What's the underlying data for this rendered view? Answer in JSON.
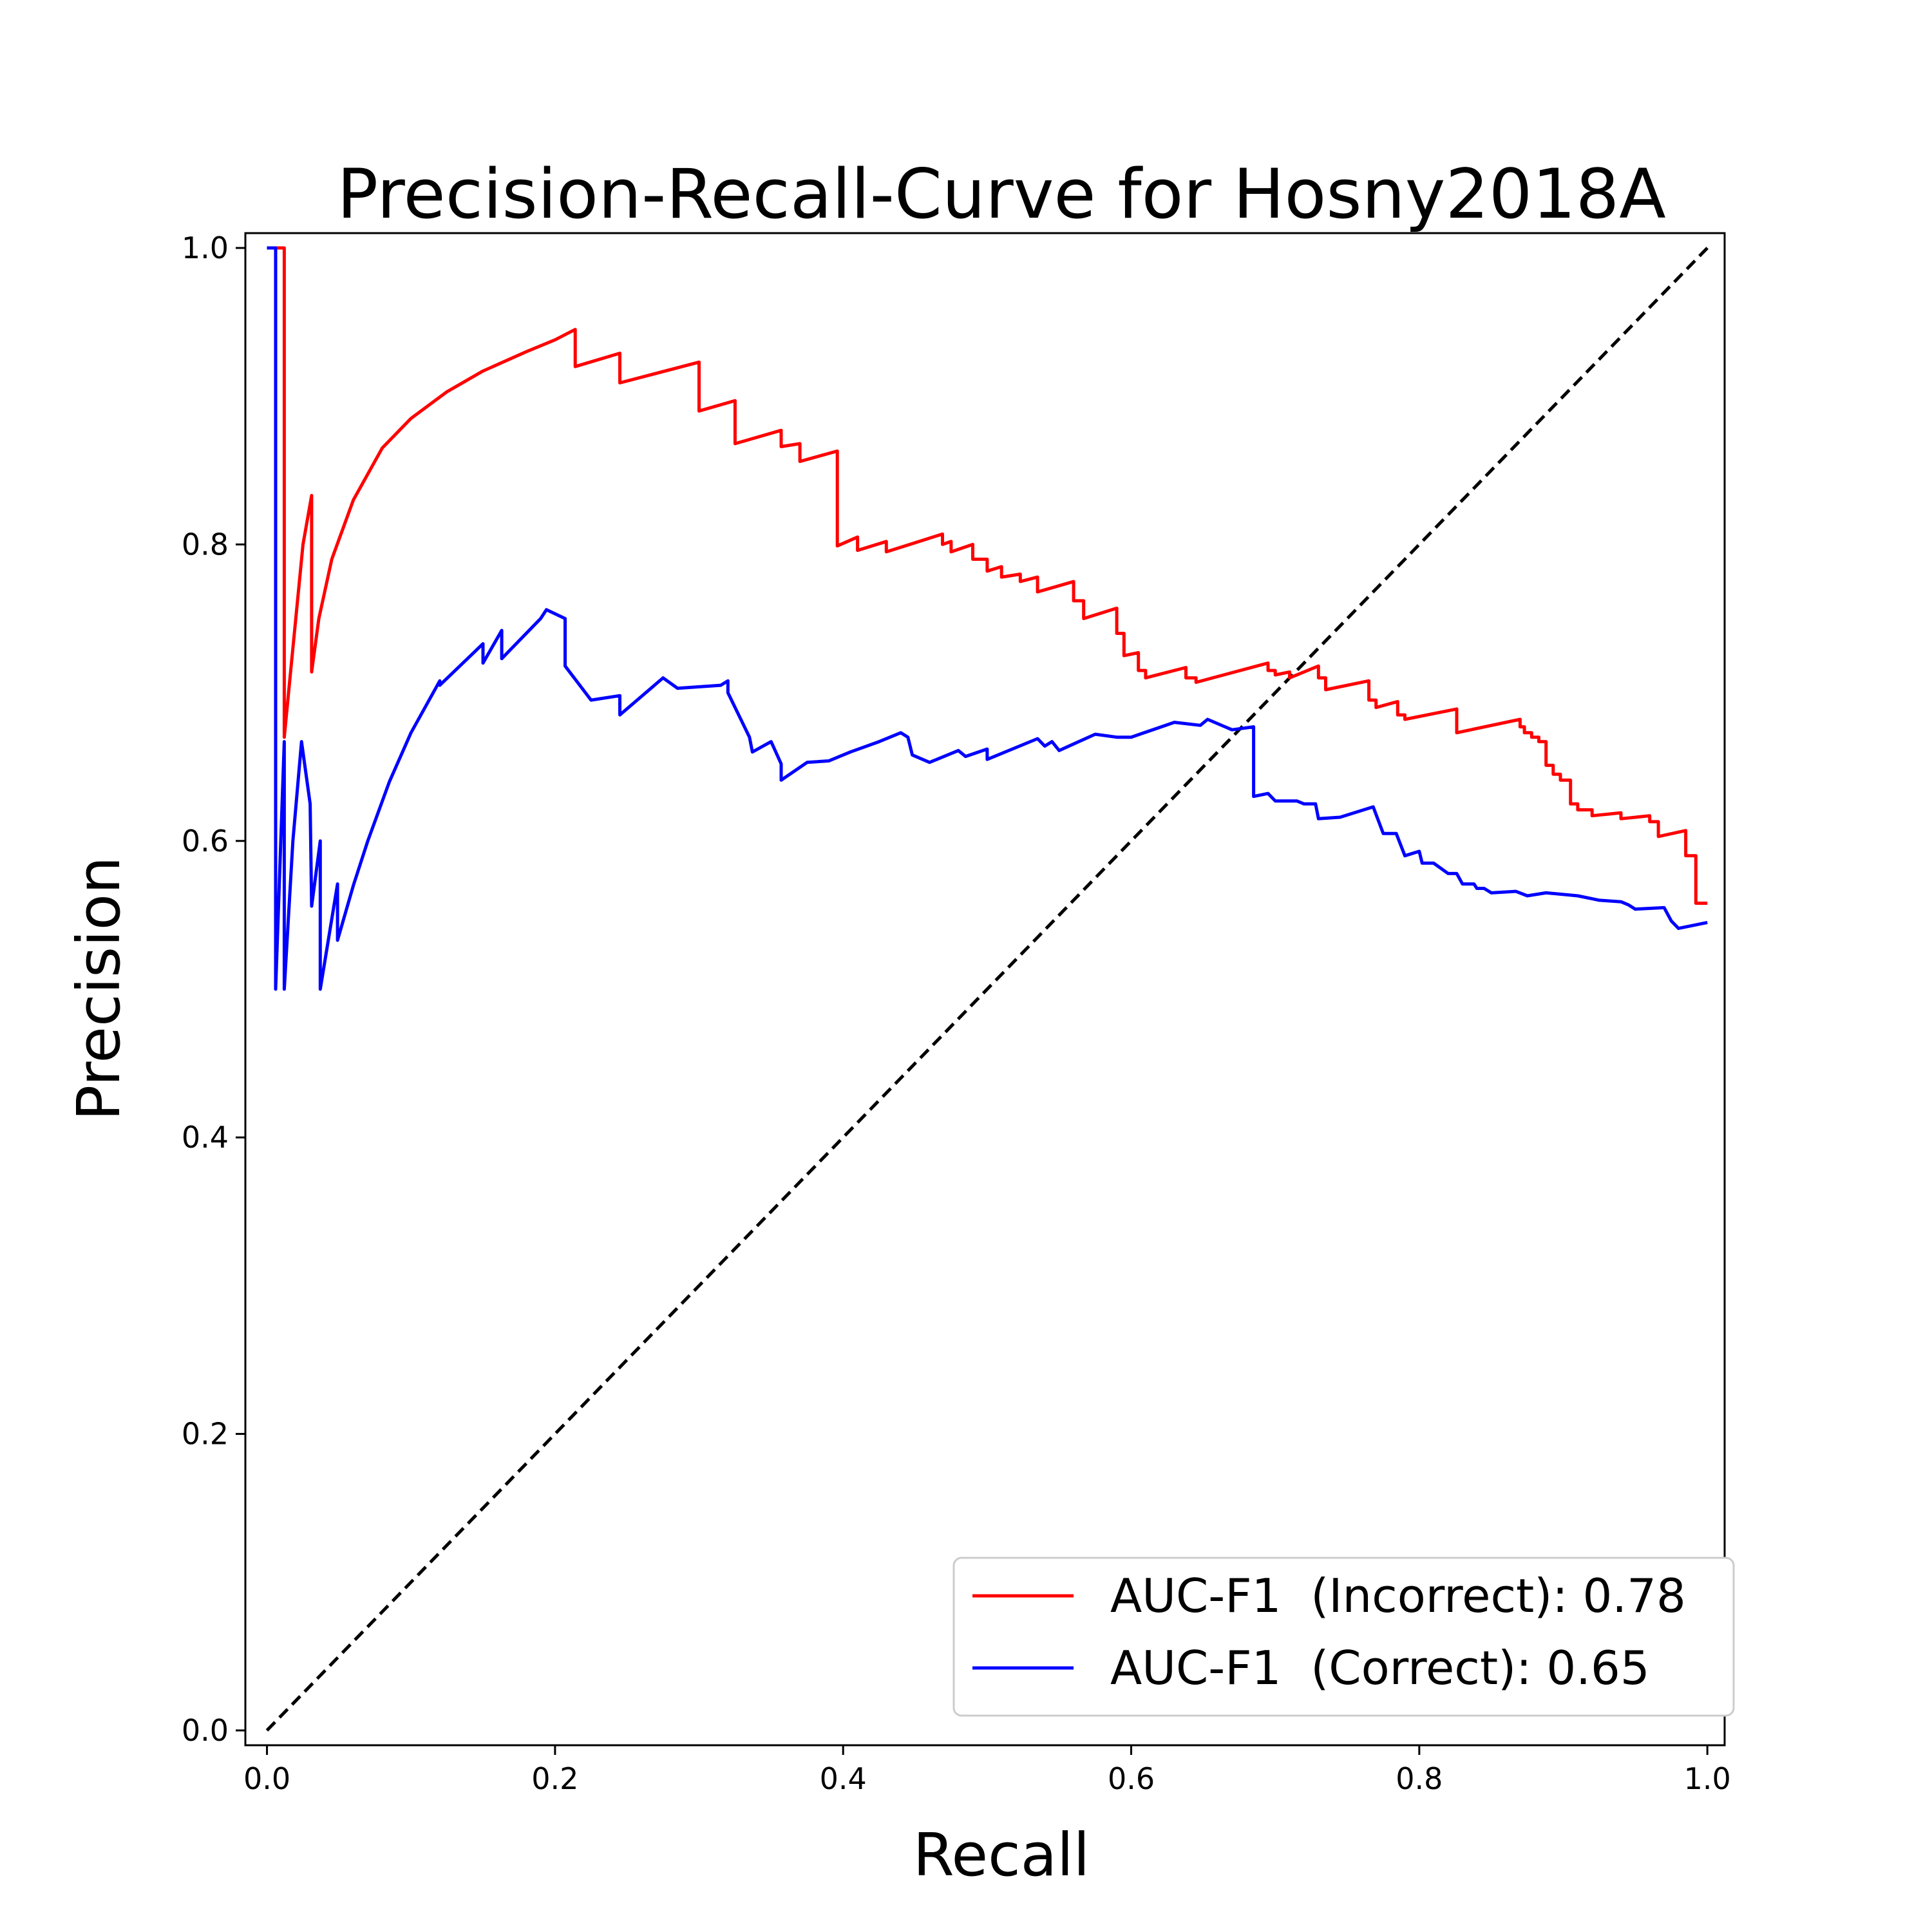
{
  "chart_data": {
    "type": "line",
    "title": "Precision-Recall-Curve for Hosny2018A",
    "xlabel": "Recall",
    "ylabel": "Precision",
    "xlim": [
      -0.015,
      1.012
    ],
    "ylim": [
      -0.01,
      1.01
    ],
    "x_ticks": [
      "0.0",
      "0.2",
      "0.4",
      "0.6",
      "0.8",
      "1.0"
    ],
    "y_ticks": [
      "0.0",
      "0.2",
      "0.4",
      "0.6",
      "0.8",
      "1.0"
    ],
    "grid": false,
    "legend_position": "lower right",
    "series": [
      {
        "name": "AUC-F1  (Incorrect): 0.78",
        "color": "#ff0000",
        "points": [
          [
            0.0,
            1.0
          ],
          [
            0.012,
            1.0
          ],
          [
            0.012,
            0.67
          ],
          [
            0.016,
            0.71
          ],
          [
            0.02,
            0.75
          ],
          [
            0.025,
            0.8
          ],
          [
            0.031,
            0.833
          ],
          [
            0.031,
            0.714
          ],
          [
            0.036,
            0.75
          ],
          [
            0.045,
            0.79
          ],
          [
            0.06,
            0.83
          ],
          [
            0.08,
            0.865
          ],
          [
            0.1,
            0.885
          ],
          [
            0.125,
            0.903
          ],
          [
            0.15,
            0.917
          ],
          [
            0.18,
            0.93
          ],
          [
            0.2,
            0.938
          ],
          [
            0.214,
            0.945
          ],
          [
            0.214,
            0.92
          ],
          [
            0.245,
            0.929
          ],
          [
            0.245,
            0.909
          ],
          [
            0.3,
            0.923
          ],
          [
            0.3,
            0.89
          ],
          [
            0.325,
            0.897
          ],
          [
            0.325,
            0.868
          ],
          [
            0.357,
            0.877
          ],
          [
            0.357,
            0.866
          ],
          [
            0.37,
            0.868
          ],
          [
            0.37,
            0.856
          ],
          [
            0.396,
            0.863
          ],
          [
            0.396,
            0.799
          ],
          [
            0.41,
            0.805
          ],
          [
            0.41,
            0.796
          ],
          [
            0.43,
            0.802
          ],
          [
            0.43,
            0.795
          ],
          [
            0.469,
            0.807
          ],
          [
            0.469,
            0.8
          ],
          [
            0.475,
            0.802
          ],
          [
            0.475,
            0.795
          ],
          [
            0.49,
            0.8
          ],
          [
            0.49,
            0.79
          ],
          [
            0.5,
            0.79
          ],
          [
            0.5,
            0.782
          ],
          [
            0.51,
            0.785
          ],
          [
            0.51,
            0.778
          ],
          [
            0.523,
            0.78
          ],
          [
            0.523,
            0.775
          ],
          [
            0.535,
            0.778
          ],
          [
            0.535,
            0.768
          ],
          [
            0.56,
            0.775
          ],
          [
            0.56,
            0.762
          ],
          [
            0.567,
            0.762
          ],
          [
            0.567,
            0.75
          ],
          [
            0.59,
            0.757
          ],
          [
            0.59,
            0.74
          ],
          [
            0.595,
            0.74
          ],
          [
            0.595,
            0.725
          ],
          [
            0.605,
            0.727
          ],
          [
            0.605,
            0.715
          ],
          [
            0.61,
            0.715
          ],
          [
            0.61,
            0.71
          ],
          [
            0.638,
            0.717
          ],
          [
            0.638,
            0.71
          ],
          [
            0.645,
            0.71
          ],
          [
            0.645,
            0.707
          ],
          [
            0.695,
            0.72
          ],
          [
            0.695,
            0.715
          ],
          [
            0.7,
            0.715
          ],
          [
            0.7,
            0.712
          ],
          [
            0.71,
            0.714
          ],
          [
            0.71,
            0.71
          ],
          [
            0.73,
            0.718
          ],
          [
            0.73,
            0.71
          ],
          [
            0.735,
            0.71
          ],
          [
            0.735,
            0.702
          ],
          [
            0.765,
            0.708
          ],
          [
            0.765,
            0.695
          ],
          [
            0.77,
            0.695
          ],
          [
            0.77,
            0.69
          ],
          [
            0.785,
            0.694
          ],
          [
            0.785,
            0.685
          ],
          [
            0.79,
            0.685
          ],
          [
            0.79,
            0.682
          ],
          [
            0.826,
            0.689
          ],
          [
            0.826,
            0.673
          ],
          [
            0.87,
            0.682
          ],
          [
            0.87,
            0.677
          ],
          [
            0.873,
            0.677
          ],
          [
            0.873,
            0.673
          ],
          [
            0.878,
            0.673
          ],
          [
            0.878,
            0.67
          ],
          [
            0.883,
            0.67
          ],
          [
            0.883,
            0.667
          ],
          [
            0.888,
            0.667
          ],
          [
            0.888,
            0.651
          ],
          [
            0.893,
            0.651
          ],
          [
            0.893,
            0.645
          ],
          [
            0.898,
            0.645
          ],
          [
            0.898,
            0.641
          ],
          [
            0.905,
            0.641
          ],
          [
            0.905,
            0.625
          ],
          [
            0.91,
            0.625
          ],
          [
            0.91,
            0.621
          ],
          [
            0.92,
            0.621
          ],
          [
            0.92,
            0.617
          ],
          [
            0.94,
            0.619
          ],
          [
            0.94,
            0.615
          ],
          [
            0.96,
            0.617
          ],
          [
            0.96,
            0.613
          ],
          [
            0.966,
            0.613
          ],
          [
            0.966,
            0.603
          ],
          [
            0.985,
            0.607
          ],
          [
            0.985,
            0.59
          ],
          [
            0.992,
            0.59
          ],
          [
            0.992,
            0.558
          ],
          [
            1.0,
            0.558
          ]
        ]
      },
      {
        "name": "AUC-F1  (Correct): 0.65",
        "color": "#0000ff",
        "points": [
          [
            0.0,
            1.0
          ],
          [
            0.006,
            1.0
          ],
          [
            0.006,
            0.5
          ],
          [
            0.012,
            0.667
          ],
          [
            0.012,
            0.5
          ],
          [
            0.018,
            0.6
          ],
          [
            0.024,
            0.667
          ],
          [
            0.03,
            0.625
          ],
          [
            0.031,
            0.556
          ],
          [
            0.037,
            0.6
          ],
          [
            0.037,
            0.5
          ],
          [
            0.049,
            0.571
          ],
          [
            0.049,
            0.533
          ],
          [
            0.06,
            0.57
          ],
          [
            0.07,
            0.6
          ],
          [
            0.085,
            0.64
          ],
          [
            0.1,
            0.673
          ],
          [
            0.12,
            0.708
          ],
          [
            0.12,
            0.705
          ],
          [
            0.15,
            0.733
          ],
          [
            0.15,
            0.72
          ],
          [
            0.163,
            0.742
          ],
          [
            0.163,
            0.723
          ],
          [
            0.19,
            0.75
          ],
          [
            0.194,
            0.756
          ],
          [
            0.207,
            0.75
          ],
          [
            0.207,
            0.718
          ],
          [
            0.225,
            0.695
          ],
          [
            0.245,
            0.698
          ],
          [
            0.245,
            0.685
          ],
          [
            0.275,
            0.71
          ],
          [
            0.285,
            0.703
          ],
          [
            0.315,
            0.705
          ],
          [
            0.32,
            0.708
          ],
          [
            0.32,
            0.7
          ],
          [
            0.335,
            0.67
          ],
          [
            0.337,
            0.66
          ],
          [
            0.35,
            0.667
          ],
          [
            0.357,
            0.652
          ],
          [
            0.357,
            0.641
          ],
          [
            0.375,
            0.653
          ],
          [
            0.39,
            0.654
          ],
          [
            0.405,
            0.66
          ],
          [
            0.425,
            0.667
          ],
          [
            0.44,
            0.673
          ],
          [
            0.445,
            0.67
          ],
          [
            0.448,
            0.658
          ],
          [
            0.46,
            0.653
          ],
          [
            0.48,
            0.661
          ],
          [
            0.485,
            0.657
          ],
          [
            0.5,
            0.662
          ],
          [
            0.5,
            0.655
          ],
          [
            0.535,
            0.669
          ],
          [
            0.54,
            0.664
          ],
          [
            0.545,
            0.667
          ],
          [
            0.55,
            0.661
          ],
          [
            0.575,
            0.672
          ],
          [
            0.59,
            0.67
          ],
          [
            0.6,
            0.67
          ],
          [
            0.63,
            0.68
          ],
          [
            0.648,
            0.678
          ],
          [
            0.653,
            0.682
          ],
          [
            0.67,
            0.675
          ],
          [
            0.685,
            0.677
          ],
          [
            0.685,
            0.63
          ],
          [
            0.695,
            0.632
          ],
          [
            0.7,
            0.627
          ],
          [
            0.715,
            0.627
          ],
          [
            0.72,
            0.625
          ],
          [
            0.728,
            0.625
          ],
          [
            0.73,
            0.615
          ],
          [
            0.745,
            0.616
          ],
          [
            0.768,
            0.623
          ],
          [
            0.775,
            0.605
          ],
          [
            0.784,
            0.605
          ],
          [
            0.79,
            0.59
          ],
          [
            0.8,
            0.593
          ],
          [
            0.802,
            0.585
          ],
          [
            0.81,
            0.585
          ],
          [
            0.82,
            0.578
          ],
          [
            0.826,
            0.578
          ],
          [
            0.83,
            0.571
          ],
          [
            0.838,
            0.571
          ],
          [
            0.84,
            0.568
          ],
          [
            0.845,
            0.568
          ],
          [
            0.85,
            0.565
          ],
          [
            0.867,
            0.566
          ],
          [
            0.875,
            0.563
          ],
          [
            0.888,
            0.565
          ],
          [
            0.91,
            0.563
          ],
          [
            0.92,
            0.561
          ],
          [
            0.925,
            0.56
          ],
          [
            0.94,
            0.559
          ],
          [
            0.945,
            0.557
          ],
          [
            0.95,
            0.554
          ],
          [
            0.97,
            0.555
          ],
          [
            0.975,
            0.546
          ],
          [
            0.98,
            0.541
          ],
          [
            1.0,
            0.545
          ]
        ]
      },
      {
        "name": "",
        "color": "#000000",
        "dashed": true,
        "points": [
          [
            0.0,
            0.0
          ],
          [
            1.0,
            1.0
          ]
        ]
      }
    ]
  }
}
